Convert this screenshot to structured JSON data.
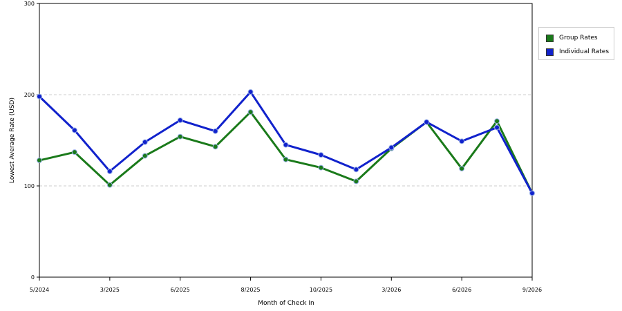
{
  "chart_data": {
    "type": "line",
    "title": "",
    "xlabel": "Month of Check In",
    "ylabel": "Lowest Average Rate (USD)",
    "ylim": [
      0,
      300
    ],
    "yticks": [
      "0",
      "100",
      "200",
      "300"
    ],
    "xticks": [
      "5/2024",
      "3/2025",
      "6/2025",
      "8/2025",
      "10/2025",
      "3/2026",
      "6/2026",
      "9/2026"
    ],
    "xtick_indices": [
      0,
      2,
      4,
      6,
      8,
      10,
      12,
      14
    ],
    "grid": "horizontal-dashed",
    "legend_position": "right",
    "series": [
      {
        "name": "Group Rates",
        "color": "#1a7a1a",
        "values": [
          128,
          137,
          101,
          133,
          154,
          143,
          181,
          129,
          120,
          105,
          141,
          170,
          119,
          171,
          92
        ]
      },
      {
        "name": "Individual Rates",
        "color": "#1122cc",
        "values": [
          198,
          161,
          116,
          148,
          172,
          160,
          203,
          145,
          134,
          118,
          142,
          170,
          149,
          164,
          92
        ]
      }
    ]
  }
}
